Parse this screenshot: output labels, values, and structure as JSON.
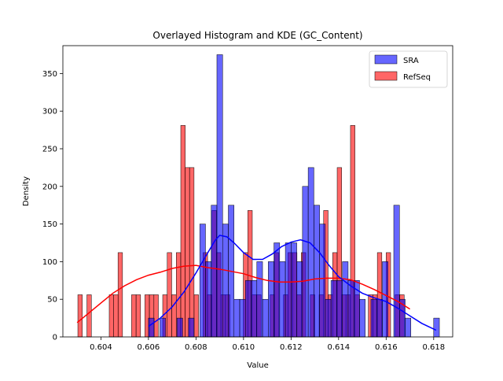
{
  "chart_data": {
    "type": "bar",
    "title": "Overlayed Histogram and KDE (GC_Content)",
    "xlabel": "Value",
    "ylabel": "Density",
    "xlim": [
      0.6024,
      0.6188
    ],
    "ylim": [
      0,
      387
    ],
    "xticks": [
      0.604,
      0.606,
      0.608,
      0.61,
      0.612,
      0.614,
      0.616,
      0.618
    ],
    "xtick_labels": [
      "0.604",
      "0.606",
      "0.608",
      "0.610",
      "0.612",
      "0.614",
      "0.616",
      "0.618"
    ],
    "yticks": [
      0,
      50,
      100,
      150,
      200,
      250,
      300,
      350
    ],
    "ytick_labels": [
      "0",
      "50",
      "100",
      "150",
      "200",
      "250",
      "300",
      "350"
    ],
    "grid": false,
    "legend_position": "top-right",
    "series": [
      {
        "name": "SRA",
        "color": "#0000ff",
        "bin_width": 0.00024,
        "bins": [
          {
            "x": 0.606,
            "y": 25
          },
          {
            "x": 0.60624,
            "y": 0
          },
          {
            "x": 0.60648,
            "y": 25
          },
          {
            "x": 0.60672,
            "y": 0
          },
          {
            "x": 0.60696,
            "y": 0
          },
          {
            "x": 0.6072,
            "y": 25
          },
          {
            "x": 0.60744,
            "y": 0
          },
          {
            "x": 0.60768,
            "y": 25
          },
          {
            "x": 0.60792,
            "y": 0
          },
          {
            "x": 0.60816,
            "y": 150
          },
          {
            "x": 0.6084,
            "y": 100
          },
          {
            "x": 0.60864,
            "y": 175
          },
          {
            "x": 0.60888,
            "y": 375
          },
          {
            "x": 0.60912,
            "y": 150
          },
          {
            "x": 0.60936,
            "y": 175
          },
          {
            "x": 0.6096,
            "y": 50
          },
          {
            "x": 0.60984,
            "y": 50
          },
          {
            "x": 0.61008,
            "y": 75
          },
          {
            "x": 0.61032,
            "y": 75
          },
          {
            "x": 0.61056,
            "y": 100
          },
          {
            "x": 0.6108,
            "y": 50
          },
          {
            "x": 0.61104,
            "y": 100
          },
          {
            "x": 0.61128,
            "y": 125
          },
          {
            "x": 0.61152,
            "y": 100
          },
          {
            "x": 0.61176,
            "y": 125
          },
          {
            "x": 0.612,
            "y": 125
          },
          {
            "x": 0.61224,
            "y": 100
          },
          {
            "x": 0.61248,
            "y": 200
          },
          {
            "x": 0.61272,
            "y": 225
          },
          {
            "x": 0.61296,
            "y": 175
          },
          {
            "x": 0.6132,
            "y": 150
          },
          {
            "x": 0.61344,
            "y": 50
          },
          {
            "x": 0.61368,
            "y": 75
          },
          {
            "x": 0.61392,
            "y": 75
          },
          {
            "x": 0.61416,
            "y": 100
          },
          {
            "x": 0.6144,
            "y": 75
          },
          {
            "x": 0.61464,
            "y": 75
          },
          {
            "x": 0.61488,
            "y": 50
          },
          {
            "x": 0.61512,
            "y": 0
          },
          {
            "x": 0.61536,
            "y": 50
          },
          {
            "x": 0.6156,
            "y": 50
          },
          {
            "x": 0.61584,
            "y": 100
          },
          {
            "x": 0.61608,
            "y": 0
          },
          {
            "x": 0.61632,
            "y": 175
          },
          {
            "x": 0.61656,
            "y": 50
          },
          {
            "x": 0.6168,
            "y": 25
          },
          {
            "x": 0.61704,
            "y": 0
          },
          {
            "x": 0.61728,
            "y": 0
          },
          {
            "x": 0.61752,
            "y": 0
          },
          {
            "x": 0.61776,
            "y": 0
          },
          {
            "x": 0.618,
            "y": 25
          }
        ],
        "kde": [
          [
            0.606,
            14
          ],
          [
            0.6065,
            25
          ],
          [
            0.607,
            40
          ],
          [
            0.6075,
            60
          ],
          [
            0.608,
            85
          ],
          [
            0.6085,
            112
          ],
          [
            0.6088,
            128
          ],
          [
            0.609,
            135
          ],
          [
            0.6093,
            133
          ],
          [
            0.6096,
            125
          ],
          [
            0.61,
            112
          ],
          [
            0.6104,
            103
          ],
          [
            0.6108,
            103
          ],
          [
            0.6112,
            110
          ],
          [
            0.6116,
            120
          ],
          [
            0.612,
            126
          ],
          [
            0.6124,
            129
          ],
          [
            0.6128,
            125
          ],
          [
            0.6132,
            112
          ],
          [
            0.6136,
            95
          ],
          [
            0.614,
            80
          ],
          [
            0.6145,
            68
          ],
          [
            0.615,
            58
          ],
          [
            0.6155,
            52
          ],
          [
            0.616,
            47
          ],
          [
            0.6165,
            38
          ],
          [
            0.617,
            28
          ],
          [
            0.6175,
            18
          ],
          [
            0.6181,
            9
          ]
        ]
      },
      {
        "name": "RefSeq",
        "color": "#ff0000",
        "bin_width": 0.000188,
        "bins": [
          {
            "x": 0.60303,
            "y": 56
          },
          {
            "x": 0.60322,
            "y": 0
          },
          {
            "x": 0.60341,
            "y": 56
          },
          {
            "x": 0.6036,
            "y": 0
          },
          {
            "x": 0.60378,
            "y": 0
          },
          {
            "x": 0.60397,
            "y": 0
          },
          {
            "x": 0.60416,
            "y": 0
          },
          {
            "x": 0.60435,
            "y": 56
          },
          {
            "x": 0.60454,
            "y": 56
          },
          {
            "x": 0.60472,
            "y": 112
          },
          {
            "x": 0.60491,
            "y": 0
          },
          {
            "x": 0.6051,
            "y": 0
          },
          {
            "x": 0.60529,
            "y": 56
          },
          {
            "x": 0.60548,
            "y": 56
          },
          {
            "x": 0.60566,
            "y": 0
          },
          {
            "x": 0.60585,
            "y": 56
          },
          {
            "x": 0.60604,
            "y": 56
          },
          {
            "x": 0.60623,
            "y": 56
          },
          {
            "x": 0.60642,
            "y": 0
          },
          {
            "x": 0.6066,
            "y": 56
          },
          {
            "x": 0.60679,
            "y": 112
          },
          {
            "x": 0.60698,
            "y": 56
          },
          {
            "x": 0.60717,
            "y": 112
          },
          {
            "x": 0.60736,
            "y": 281
          },
          {
            "x": 0.60754,
            "y": 225
          },
          {
            "x": 0.60773,
            "y": 225
          },
          {
            "x": 0.60792,
            "y": 56
          },
          {
            "x": 0.60811,
            "y": 0
          },
          {
            "x": 0.6083,
            "y": 112
          },
          {
            "x": 0.60848,
            "y": 56
          },
          {
            "x": 0.60867,
            "y": 168
          },
          {
            "x": 0.60886,
            "y": 112
          },
          {
            "x": 0.60905,
            "y": 56
          },
          {
            "x": 0.60924,
            "y": 56
          },
          {
            "x": 0.60942,
            "y": 0
          },
          {
            "x": 0.60961,
            "y": 0
          },
          {
            "x": 0.6098,
            "y": 0
          },
          {
            "x": 0.60999,
            "y": 112
          },
          {
            "x": 0.61018,
            "y": 168
          },
          {
            "x": 0.61036,
            "y": 56
          },
          {
            "x": 0.61055,
            "y": 56
          },
          {
            "x": 0.61074,
            "y": 0
          },
          {
            "x": 0.61093,
            "y": 0
          },
          {
            "x": 0.61112,
            "y": 56
          },
          {
            "x": 0.6113,
            "y": 112
          },
          {
            "x": 0.61149,
            "y": 0
          },
          {
            "x": 0.61168,
            "y": 56
          },
          {
            "x": 0.61187,
            "y": 112
          },
          {
            "x": 0.61206,
            "y": 112
          },
          {
            "x": 0.61224,
            "y": 56
          },
          {
            "x": 0.61243,
            "y": 112
          },
          {
            "x": 0.61262,
            "y": 0
          },
          {
            "x": 0.61281,
            "y": 56
          },
          {
            "x": 0.613,
            "y": 0
          },
          {
            "x": 0.61318,
            "y": 56
          },
          {
            "x": 0.61337,
            "y": 168
          },
          {
            "x": 0.61356,
            "y": 56
          },
          {
            "x": 0.61375,
            "y": 112
          },
          {
            "x": 0.61394,
            "y": 225
          },
          {
            "x": 0.61412,
            "y": 56
          },
          {
            "x": 0.61431,
            "y": 56
          },
          {
            "x": 0.6145,
            "y": 281
          },
          {
            "x": 0.61469,
            "y": 56
          },
          {
            "x": 0.61488,
            "y": 0
          },
          {
            "x": 0.61506,
            "y": 0
          },
          {
            "x": 0.61525,
            "y": 56
          },
          {
            "x": 0.61544,
            "y": 56
          },
          {
            "x": 0.61563,
            "y": 112
          },
          {
            "x": 0.61582,
            "y": 0
          },
          {
            "x": 0.616,
            "y": 112
          },
          {
            "x": 0.61619,
            "y": 0
          },
          {
            "x": 0.61638,
            "y": 56
          },
          {
            "x": 0.61657,
            "y": 56
          }
        ],
        "kde": [
          [
            0.603,
            19
          ],
          [
            0.6035,
            32
          ],
          [
            0.604,
            45
          ],
          [
            0.6045,
            58
          ],
          [
            0.605,
            68
          ],
          [
            0.6055,
            76
          ],
          [
            0.606,
            82
          ],
          [
            0.6065,
            86
          ],
          [
            0.607,
            91
          ],
          [
            0.6075,
            94
          ],
          [
            0.608,
            95
          ],
          [
            0.6085,
            92
          ],
          [
            0.609,
            90
          ],
          [
            0.6095,
            87
          ],
          [
            0.61,
            84
          ],
          [
            0.6105,
            79
          ],
          [
            0.611,
            75
          ],
          [
            0.6115,
            73
          ],
          [
            0.612,
            73
          ],
          [
            0.6125,
            74
          ],
          [
            0.613,
            77
          ],
          [
            0.6135,
            78
          ],
          [
            0.614,
            78
          ],
          [
            0.6145,
            76
          ],
          [
            0.615,
            70
          ],
          [
            0.6155,
            63
          ],
          [
            0.616,
            55
          ],
          [
            0.6165,
            47
          ],
          [
            0.617,
            37
          ]
        ]
      }
    ]
  }
}
